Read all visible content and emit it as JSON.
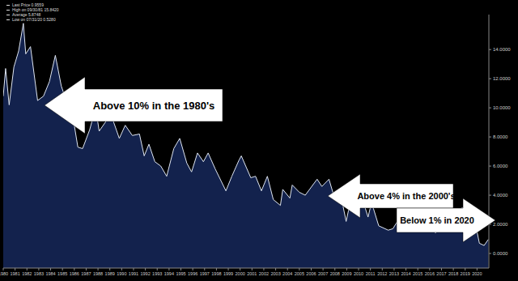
{
  "chart_data": {
    "type": "area",
    "color": "#13224d",
    "grid": false,
    "legend_box": [
      "Last Price 0.9559",
      "High on 09/30/81 15.8420",
      "Average 5.8748",
      "Low on 07/31/20 0.5280"
    ],
    "annotations": [
      "Above 10% in the 1980's",
      "Above 4% in the 2000's",
      "Below 1% in 2020"
    ],
    "x": [
      1980.0,
      1980.2,
      1980.5,
      1980.9,
      1981.3,
      1981.7,
      1981.9,
      1982.3,
      1982.9,
      1983.4,
      1983.9,
      1984.4,
      1984.9,
      1985.4,
      1985.9,
      1986.3,
      1986.7,
      1987.3,
      1987.8,
      1988.1,
      1988.7,
      1989.2,
      1989.8,
      1990.3,
      1990.9,
      1991.5,
      1991.9,
      1992.3,
      1992.8,
      1993.3,
      1993.8,
      1994.4,
      1994.9,
      1995.5,
      1995.9,
      1996.4,
      1996.9,
      1997.3,
      1997.9,
      1998.8,
      1999.3,
      1999.9,
      2000.1,
      2000.9,
      2001.3,
      2001.8,
      2002.3,
      2002.8,
      2003.4,
      2003.6,
      2004.2,
      2004.4,
      2005.0,
      2005.5,
      2006.5,
      2006.9,
      2007.5,
      2007.9,
      2008.5,
      2008.95,
      2009.4,
      2009.9,
      2010.3,
      2010.8,
      2011.1,
      2011.7,
      2012.5,
      2012.9,
      2013.5,
      2013.95,
      2014.5,
      2015.0,
      2015.5,
      2016.5,
      2016.95,
      2017.5,
      2017.9,
      2018.4,
      2018.8,
      2019.0,
      2019.6,
      2019.9,
      2020.2,
      2020.6,
      2020.95
    ],
    "values": [
      10.8,
      12.7,
      10.2,
      12.8,
      13.9,
      15.8,
      13.7,
      14.2,
      10.5,
      10.8,
      11.8,
      13.6,
      11.5,
      10.3,
      9.3,
      7.3,
      7.2,
      8.5,
      10.0,
      8.4,
      9.1,
      9.3,
      7.9,
      8.8,
      8.1,
      8.2,
      6.7,
      7.5,
      6.3,
      6.0,
      5.3,
      7.2,
      7.9,
      6.2,
      5.6,
      6.9,
      6.3,
      6.9,
      5.8,
      4.3,
      5.3,
      6.4,
      6.7,
      5.2,
      5.3,
      4.3,
      5.3,
      3.7,
      3.3,
      4.4,
      3.8,
      4.7,
      4.2,
      4.0,
      5.1,
      4.6,
      5.1,
      4.0,
      4.0,
      2.2,
      3.9,
      3.6,
      3.8,
      2.5,
      3.5,
      1.9,
      1.6,
      1.7,
      2.5,
      3.0,
      2.5,
      1.7,
      2.4,
      1.4,
      2.5,
      2.3,
      2.4,
      3.0,
      3.15,
      2.7,
      1.5,
      1.9,
      0.7,
      0.55,
      0.96
    ],
    "xlim": [
      1980,
      2021
    ],
    "xticks": [
      1980,
      1981,
      1982,
      1983,
      1984,
      1985,
      1986,
      1987,
      1988,
      1989,
      1990,
      1991,
      1992,
      1993,
      1994,
      1995,
      1996,
      1997,
      1998,
      1999,
      2000,
      2001,
      2002,
      2003,
      2004,
      2005,
      2006,
      2007,
      2008,
      2009,
      2010,
      2011,
      2012,
      2013,
      2014,
      2015,
      2016,
      2017,
      2018,
      2019,
      2020
    ],
    "ylim": [
      -1,
      16.4
    ],
    "yticks": [
      {
        "value": 0,
        "label": "0.0000"
      },
      {
        "value": 2,
        "label": "2.0000"
      },
      {
        "value": 4,
        "label": "4.0000"
      },
      {
        "value": 6,
        "label": "6.0000"
      },
      {
        "value": 8,
        "label": "8.0000"
      },
      {
        "value": 10,
        "label": "10.0000"
      },
      {
        "value": 12,
        "label": "12.0000"
      },
      {
        "value": 14,
        "label": "14.0000"
      }
    ]
  }
}
